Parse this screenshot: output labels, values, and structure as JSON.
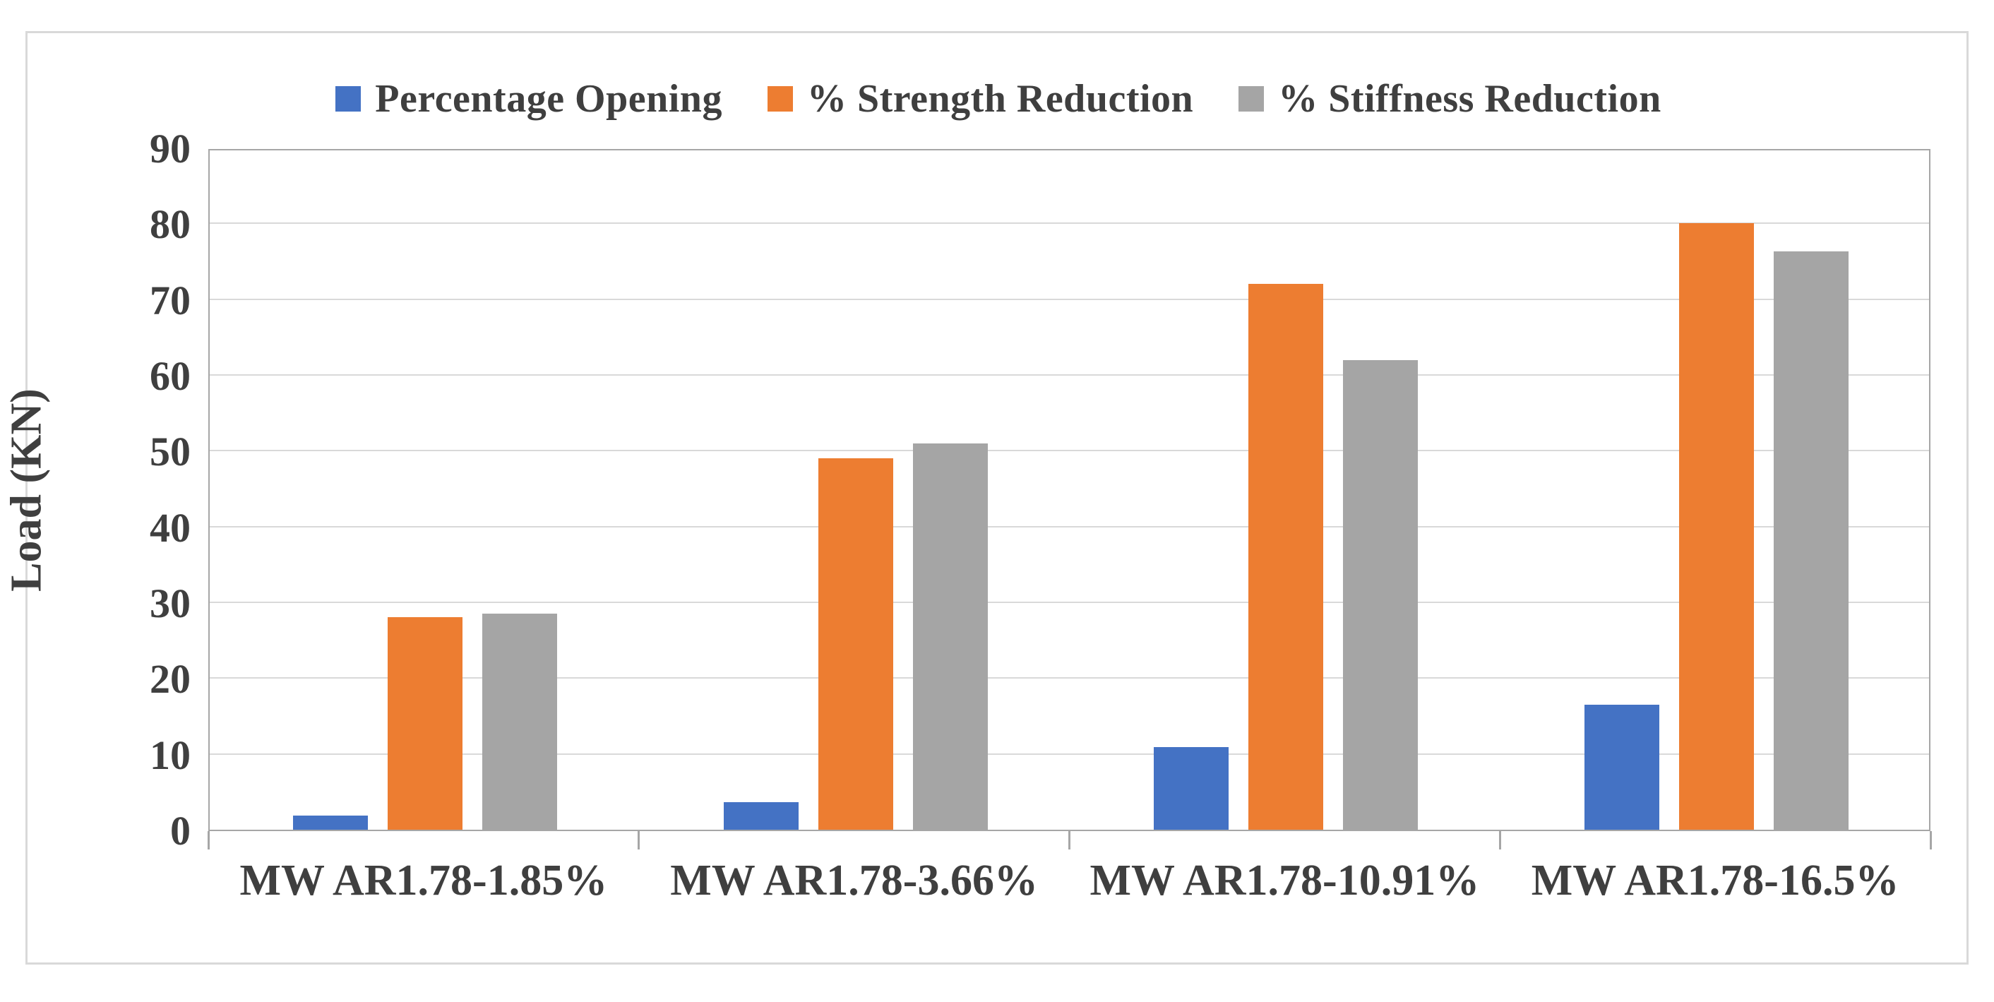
{
  "figure": {
    "border_color": "#D9D9D9",
    "background": "#FFFFFF"
  },
  "chart_data": {
    "type": "bar",
    "title": "",
    "xlabel": "",
    "ylabel": "Load (KN)",
    "ylim": [
      0,
      90
    ],
    "yticks": [
      0,
      10,
      20,
      30,
      40,
      50,
      60,
      70,
      80,
      90
    ],
    "grid": true,
    "legend_position": "top-center",
    "gridline_color": "#D9D9D9",
    "axis_line_color": "#A6A6A6",
    "text_color": "#3F3F3F",
    "categories": [
      "MW AR1.78-1.85%",
      "MW AR1.78-3.66%",
      "MW AR1.78-10.91%",
      "MW AR1.78-16.5%"
    ],
    "series": [
      {
        "name": "Percentage Opening",
        "color": "#4472C4",
        "values": [
          1.85,
          3.66,
          10.91,
          16.5
        ]
      },
      {
        "name": "% Strength Reduction",
        "color": "#ED7D31",
        "values": [
          28,
          49,
          72,
          80
        ]
      },
      {
        "name": "% Stiffness Reduction",
        "color": "#A5A5A5",
        "values": [
          28.5,
          51,
          62,
          76.3
        ]
      }
    ]
  }
}
